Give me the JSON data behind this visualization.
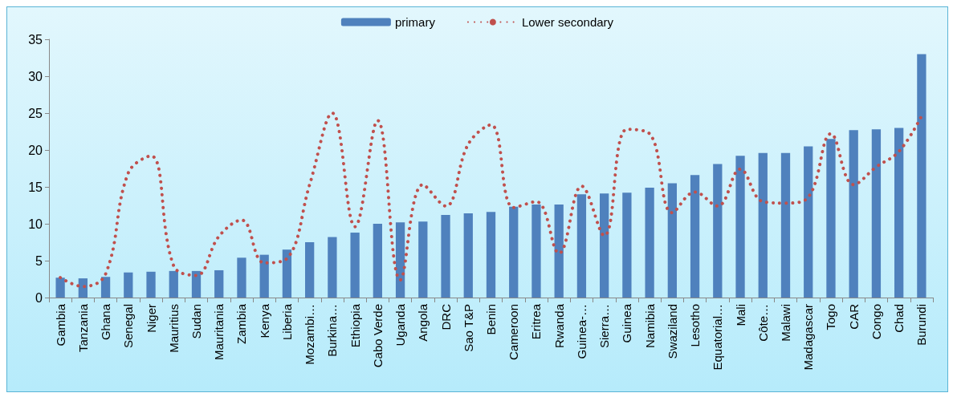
{
  "chart_data": {
    "type": "bar",
    "categories": [
      "Gambia",
      "Tanzania",
      "Ghana",
      "Senegal",
      "Niger",
      "Mauritius",
      "Sudan",
      "Mauritania",
      "Zambia",
      "Kenya",
      "Liberia",
      "Mozambi…",
      "Burkina…",
      "Ethiopia",
      "Cabo Verde",
      "Uganda",
      "Angola",
      "DRC",
      "Sao T&P",
      "Benin",
      "Cameroon",
      "Eritrea",
      "Rwanda",
      "Guinea-…",
      "Sierra…",
      "Guinea",
      "Namibia",
      "Swaziland",
      "Lesotho",
      "Equatorial…",
      "Mali",
      "Côte…",
      "Malawi",
      "Madagascar",
      "Togo",
      "CAR",
      "Congo",
      "Chad",
      "Burundi"
    ],
    "series": [
      {
        "name": "primary",
        "color": "#4f81bd",
        "values": [
          2.7,
          2.6,
          2.8,
          3.4,
          3.5,
          3.6,
          3.6,
          3.7,
          5.4,
          5.8,
          6.5,
          7.5,
          8.2,
          8.8,
          10.0,
          10.2,
          10.3,
          11.2,
          11.4,
          11.6,
          12.3,
          12.6,
          12.6,
          14.0,
          14.1,
          14.2,
          14.9,
          15.5,
          16.6,
          18.1,
          19.2,
          19.6,
          19.6,
          20.5,
          21.5,
          22.7,
          22.8,
          23.0,
          33.0
        ]
      },
      {
        "name": "Lower secondary",
        "type": "line",
        "color": "#c0504d",
        "line_style": "dotted",
        "values": [
          2.7,
          1.5,
          3.2,
          16.9,
          19.2,
          4.3,
          3.0,
          8.3,
          10.5,
          4.7,
          5.3,
          15.3,
          25.0,
          9.6,
          24.0,
          2.4,
          15.3,
          12.4,
          20.8,
          23.4,
          12.2,
          13.0,
          6.0,
          15.1,
          8.4,
          22.8,
          22.2,
          11.5,
          14.3,
          12.4,
          17.4,
          13.0,
          12.8,
          13.6,
          22.2,
          15.3,
          17.7,
          19.8,
          24.6
        ]
      }
    ],
    "ylim": [
      0,
      35
    ],
    "yticks": [
      0,
      5,
      10,
      15,
      20,
      25,
      30,
      35
    ],
    "grid": false,
    "legend": "top",
    "marker": "none"
  }
}
